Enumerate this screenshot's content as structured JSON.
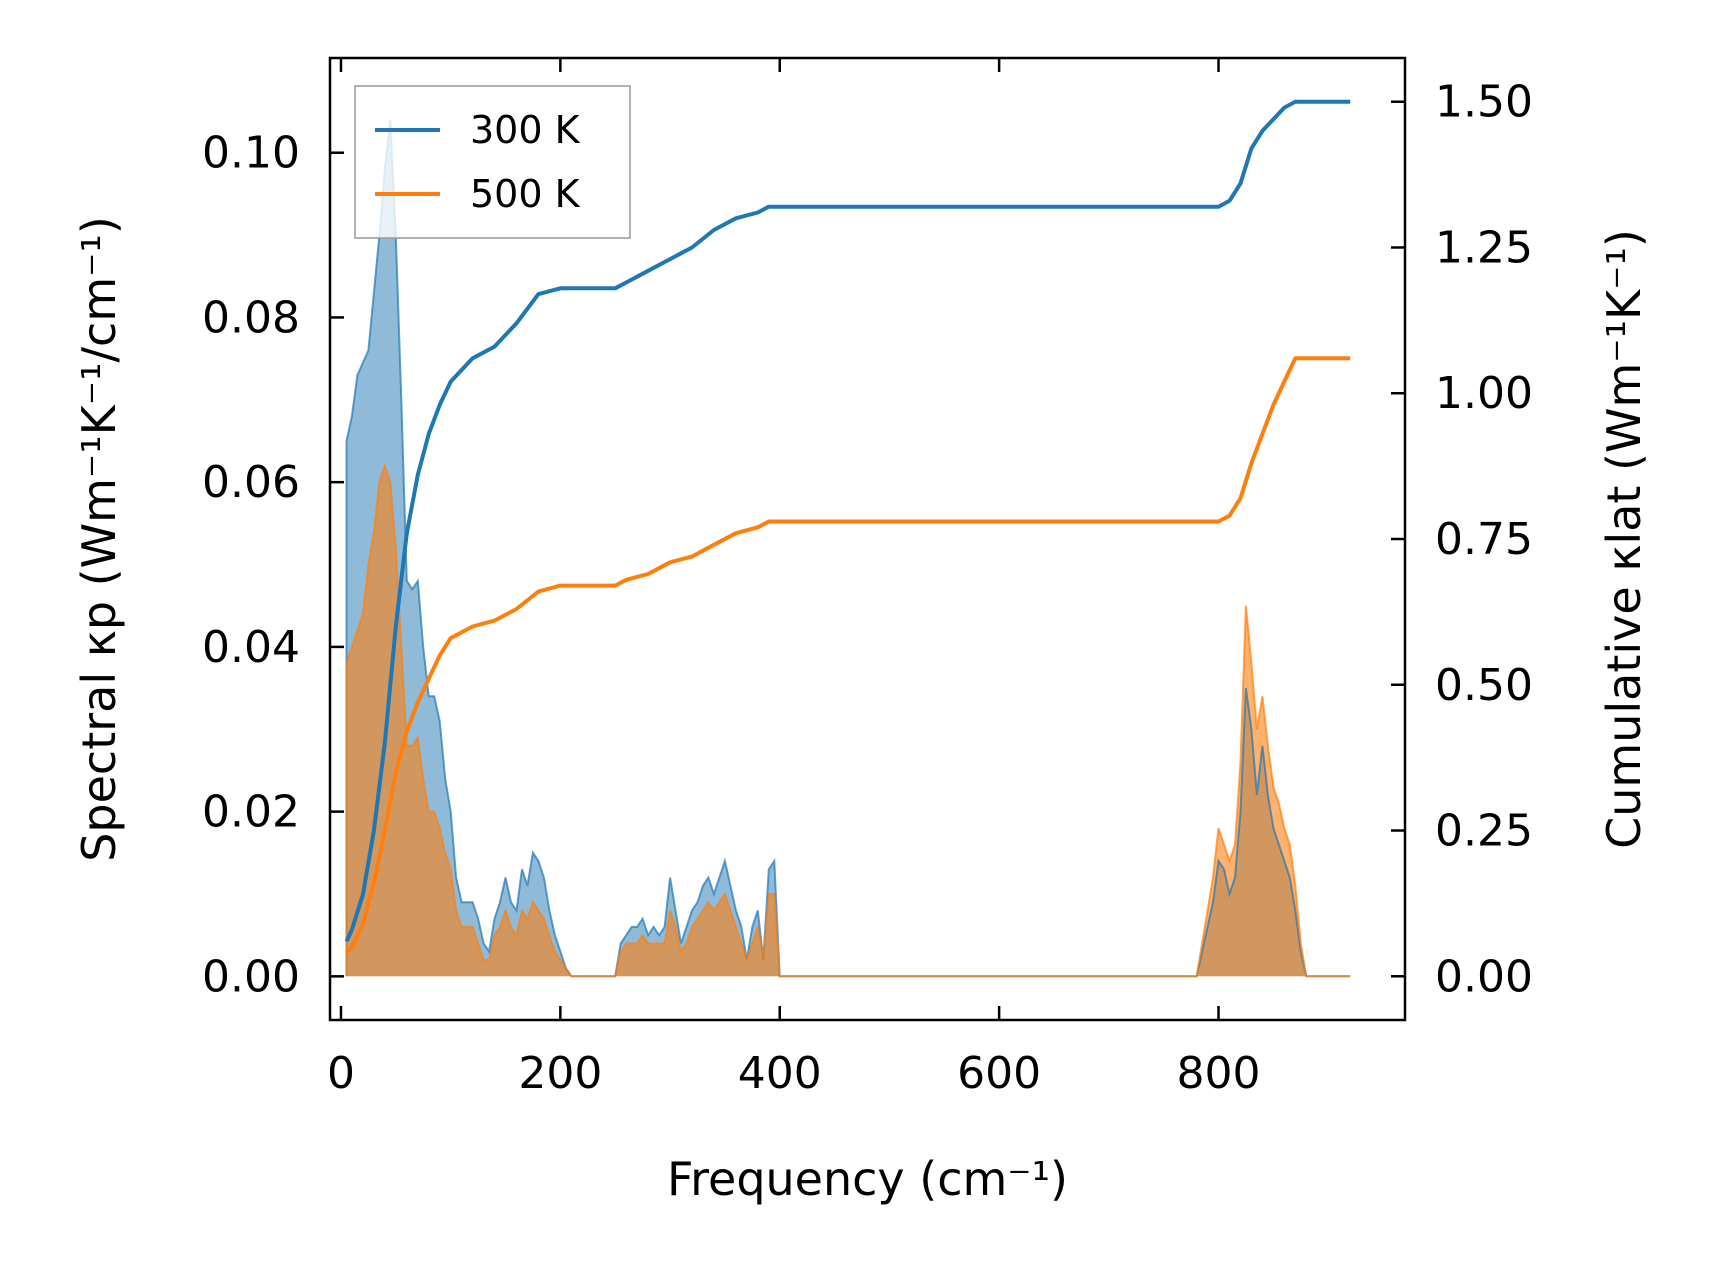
{
  "chart_data": {
    "type": "line",
    "xlabel": "Frequency (cm⁻¹)",
    "ylabel_left": "Spectral κp (Wm⁻¹K⁻¹/cm⁻¹)",
    "ylabel_right": "Cumulative κlat (Wm⁻¹K⁻¹)",
    "xlim": [
      -10,
      970
    ],
    "ylim_left": [
      -0.0053,
      0.1115
    ],
    "ylim_right": [
      -0.075,
      1.575
    ],
    "x_ticks": [
      0,
      200,
      400,
      600,
      800
    ],
    "x_tick_labels": [
      "0",
      "200",
      "400",
      "600",
      "800"
    ],
    "y_left_ticks": [
      0.0,
      0.02,
      0.04,
      0.06,
      0.08,
      0.1
    ],
    "y_left_tick_labels": [
      "0.00",
      "0.02",
      "0.04",
      "0.06",
      "0.08",
      "0.10"
    ],
    "y_right_ticks": [
      0.0,
      0.25,
      0.5,
      0.75,
      1.0,
      1.25,
      1.5
    ],
    "y_right_tick_labels": [
      "0.00",
      "0.25",
      "0.50",
      "0.75",
      "1.00",
      "1.25",
      "1.50"
    ],
    "legend": {
      "placement": "upper-left"
    },
    "grid": false,
    "series": [
      {
        "name": "300 K",
        "color": "#1f77b4",
        "spectral": {
          "axis": "left",
          "points": [
            [
              5,
              0
            ],
            [
              5,
              0.065
            ],
            [
              10,
              0.068
            ],
            [
              15,
              0.073
            ],
            [
              25,
              0.076
            ],
            [
              30,
              0.083
            ],
            [
              35,
              0.09
            ],
            [
              40,
              0.098
            ],
            [
              45,
              0.104
            ],
            [
              50,
              0.09
            ],
            [
              55,
              0.07
            ],
            [
              60,
              0.048
            ],
            [
              65,
              0.047
            ],
            [
              70,
              0.048
            ],
            [
              75,
              0.04
            ],
            [
              80,
              0.034
            ],
            [
              85,
              0.034
            ],
            [
              90,
              0.031
            ],
            [
              95,
              0.024
            ],
            [
              100,
              0.02
            ],
            [
              105,
              0.012
            ],
            [
              110,
              0.009
            ],
            [
              115,
              0.009
            ],
            [
              120,
              0.009
            ],
            [
              125,
              0.007
            ],
            [
              130,
              0.004
            ],
            [
              135,
              0.003
            ],
            [
              140,
              0.007
            ],
            [
              145,
              0.009
            ],
            [
              150,
              0.012
            ],
            [
              155,
              0.009
            ],
            [
              160,
              0.008
            ],
            [
              165,
              0.013
            ],
            [
              170,
              0.011
            ],
            [
              175,
              0.015
            ],
            [
              180,
              0.014
            ],
            [
              185,
              0.012
            ],
            [
              190,
              0.008
            ],
            [
              195,
              0.005
            ],
            [
              200,
              0.003
            ],
            [
              205,
              0.001
            ],
            [
              210,
              0
            ],
            [
              250,
              0
            ],
            [
              255,
              0.004
            ],
            [
              260,
              0.005
            ],
            [
              265,
              0.006
            ],
            [
              270,
              0.006
            ],
            [
              275,
              0.007
            ],
            [
              280,
              0.005
            ],
            [
              285,
              0.006
            ],
            [
              290,
              0.005
            ],
            [
              295,
              0.006
            ],
            [
              300,
              0.012
            ],
            [
              305,
              0.008
            ],
            [
              310,
              0.004
            ],
            [
              315,
              0.006
            ],
            [
              320,
              0.008
            ],
            [
              325,
              0.009
            ],
            [
              330,
              0.011
            ],
            [
              335,
              0.012
            ],
            [
              340,
              0.01
            ],
            [
              345,
              0.012
            ],
            [
              350,
              0.014
            ],
            [
              355,
              0.011
            ],
            [
              360,
              0.008
            ],
            [
              365,
              0.006
            ],
            [
              370,
              0.002
            ],
            [
              375,
              0.006
            ],
            [
              380,
              0.008
            ],
            [
              385,
              0.002
            ],
            [
              390,
              0.013
            ],
            [
              395,
              0.014
            ],
            [
              400,
              0
            ],
            [
              780,
              0
            ],
            [
              785,
              0.003
            ],
            [
              790,
              0.006
            ],
            [
              795,
              0.009
            ],
            [
              800,
              0.014
            ],
            [
              805,
              0.013
            ],
            [
              810,
              0.01
            ],
            [
              815,
              0.012
            ],
            [
              820,
              0.02
            ],
            [
              825,
              0.035
            ],
            [
              830,
              0.03
            ],
            [
              835,
              0.022
            ],
            [
              840,
              0.028
            ],
            [
              845,
              0.022
            ],
            [
              850,
              0.018
            ],
            [
              855,
              0.016
            ],
            [
              860,
              0.014
            ],
            [
              865,
              0.012
            ],
            [
              870,
              0.008
            ],
            [
              875,
              0.003
            ],
            [
              880,
              0
            ],
            [
              920,
              0
            ]
          ]
        },
        "cumulative": {
          "axis": "right",
          "points": [
            [
              5,
              0.06
            ],
            [
              10,
              0.08
            ],
            [
              20,
              0.14
            ],
            [
              30,
              0.25
            ],
            [
              40,
              0.4
            ],
            [
              50,
              0.6
            ],
            [
              60,
              0.76
            ],
            [
              70,
              0.86
            ],
            [
              80,
              0.93
            ],
            [
              90,
              0.98
            ],
            [
              100,
              1.02
            ],
            [
              120,
              1.06
            ],
            [
              140,
              1.08
            ],
            [
              160,
              1.12
            ],
            [
              180,
              1.17
            ],
            [
              200,
              1.18
            ],
            [
              250,
              1.18
            ],
            [
              260,
              1.19
            ],
            [
              280,
              1.21
            ],
            [
              300,
              1.23
            ],
            [
              320,
              1.25
            ],
            [
              340,
              1.28
            ],
            [
              360,
              1.3
            ],
            [
              380,
              1.31
            ],
            [
              390,
              1.32
            ],
            [
              800,
              1.32
            ],
            [
              810,
              1.33
            ],
            [
              820,
              1.36
            ],
            [
              830,
              1.42
            ],
            [
              840,
              1.45
            ],
            [
              850,
              1.47
            ],
            [
              860,
              1.49
            ],
            [
              870,
              1.5
            ],
            [
              920,
              1.5
            ]
          ]
        }
      },
      {
        "name": "500 K",
        "color": "#ff7f0e",
        "spectral": {
          "axis": "left",
          "points": [
            [
              5,
              0
            ],
            [
              5,
              0.038
            ],
            [
              10,
              0.04
            ],
            [
              15,
              0.042
            ],
            [
              20,
              0.044
            ],
            [
              25,
              0.05
            ],
            [
              30,
              0.054
            ],
            [
              35,
              0.06
            ],
            [
              40,
              0.062
            ],
            [
              45,
              0.06
            ],
            [
              50,
              0.052
            ],
            [
              55,
              0.04
            ],
            [
              60,
              0.028
            ],
            [
              65,
              0.028
            ],
            [
              70,
              0.029
            ],
            [
              75,
              0.024
            ],
            [
              80,
              0.02
            ],
            [
              85,
              0.02
            ],
            [
              90,
              0.018
            ],
            [
              95,
              0.015
            ],
            [
              100,
              0.013
            ],
            [
              105,
              0.008
            ],
            [
              110,
              0.006
            ],
            [
              115,
              0.006
            ],
            [
              120,
              0.006
            ],
            [
              125,
              0.004
            ],
            [
              130,
              0.002
            ],
            [
              135,
              0.002
            ],
            [
              140,
              0.005
            ],
            [
              145,
              0.006
            ],
            [
              150,
              0.008
            ],
            [
              155,
              0.006
            ],
            [
              160,
              0.005
            ],
            [
              165,
              0.008
            ],
            [
              170,
              0.007
            ],
            [
              175,
              0.009
            ],
            [
              180,
              0.008
            ],
            [
              185,
              0.007
            ],
            [
              190,
              0.005
            ],
            [
              195,
              0.003
            ],
            [
              200,
              0.002
            ],
            [
              205,
              0.001
            ],
            [
              210,
              0
            ],
            [
              250,
              0
            ],
            [
              255,
              0.003
            ],
            [
              260,
              0.004
            ],
            [
              265,
              0.004
            ],
            [
              270,
              0.004
            ],
            [
              275,
              0.005
            ],
            [
              280,
              0.004
            ],
            [
              285,
              0.004
            ],
            [
              290,
              0.004
            ],
            [
              295,
              0.004
            ],
            [
              300,
              0.008
            ],
            [
              305,
              0.006
            ],
            [
              310,
              0.003
            ],
            [
              315,
              0.004
            ],
            [
              320,
              0.006
            ],
            [
              325,
              0.007
            ],
            [
              330,
              0.008
            ],
            [
              335,
              0.009
            ],
            [
              340,
              0.008
            ],
            [
              345,
              0.009
            ],
            [
              350,
              0.01
            ],
            [
              355,
              0.008
            ],
            [
              360,
              0.006
            ],
            [
              365,
              0.004
            ],
            [
              370,
              0.002
            ],
            [
              375,
              0.004
            ],
            [
              380,
              0.006
            ],
            [
              385,
              0.002
            ],
            [
              390,
              0.01
            ],
            [
              395,
              0.01
            ],
            [
              400,
              0
            ],
            [
              780,
              0
            ],
            [
              785,
              0.004
            ],
            [
              790,
              0.008
            ],
            [
              795,
              0.012
            ],
            [
              800,
              0.018
            ],
            [
              805,
              0.016
            ],
            [
              810,
              0.014
            ],
            [
              815,
              0.016
            ],
            [
              820,
              0.026
            ],
            [
              825,
              0.045
            ],
            [
              830,
              0.038
            ],
            [
              835,
              0.03
            ],
            [
              840,
              0.034
            ],
            [
              845,
              0.028
            ],
            [
              850,
              0.023
            ],
            [
              855,
              0.021
            ],
            [
              860,
              0.018
            ],
            [
              865,
              0.016
            ],
            [
              870,
              0.011
            ],
            [
              875,
              0.004
            ],
            [
              880,
              0
            ],
            [
              920,
              0
            ]
          ]
        },
        "cumulative": {
          "axis": "right",
          "points": [
            [
              5,
              0.04
            ],
            [
              10,
              0.05
            ],
            [
              20,
              0.09
            ],
            [
              30,
              0.16
            ],
            [
              40,
              0.25
            ],
            [
              50,
              0.35
            ],
            [
              60,
              0.42
            ],
            [
              70,
              0.47
            ],
            [
              80,
              0.51
            ],
            [
              90,
              0.55
            ],
            [
              100,
              0.58
            ],
            [
              120,
              0.6
            ],
            [
              140,
              0.61
            ],
            [
              160,
              0.63
            ],
            [
              180,
              0.66
            ],
            [
              200,
              0.67
            ],
            [
              250,
              0.67
            ],
            [
              260,
              0.68
            ],
            [
              280,
              0.69
            ],
            [
              300,
              0.71
            ],
            [
              320,
              0.72
            ],
            [
              340,
              0.74
            ],
            [
              360,
              0.76
            ],
            [
              380,
              0.77
            ],
            [
              390,
              0.78
            ],
            [
              800,
              0.78
            ],
            [
              810,
              0.79
            ],
            [
              820,
              0.82
            ],
            [
              830,
              0.88
            ],
            [
              840,
              0.93
            ],
            [
              850,
              0.98
            ],
            [
              860,
              1.02
            ],
            [
              870,
              1.06
            ],
            [
              920,
              1.06
            ]
          ]
        }
      }
    ]
  }
}
